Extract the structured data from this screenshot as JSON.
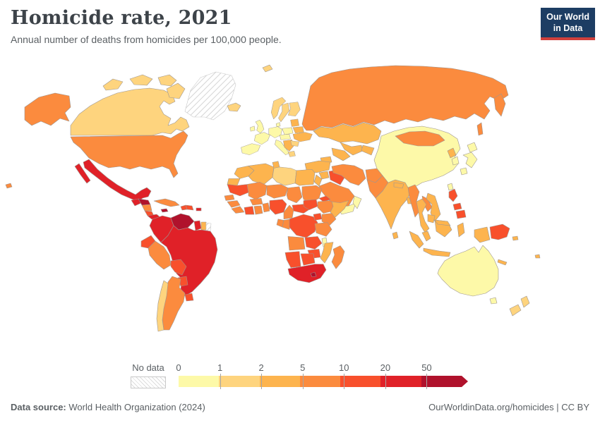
{
  "header": {
    "title": "Homicide rate, 2021",
    "subtitle": "Annual number of deaths from homicides per 100,000 people."
  },
  "logo": {
    "line1": "Our World",
    "line2": "in Data",
    "bg_color": "#1d3d63",
    "accent_color": "#d0403c"
  },
  "legend": {
    "no_data_label": "No data",
    "tick_labels": [
      "0",
      "1",
      "2",
      "5",
      "10",
      "20",
      "50"
    ]
  },
  "footer": {
    "source_label": "Data source:",
    "source_value": "World Health Organization (2024)",
    "credit": "OurWorldinData.org/homicides | CC BY"
  },
  "chart_data": {
    "type": "heatmap",
    "subtype": "choropleth-world-map",
    "title": "Homicide rate, 2021",
    "unit": "annual deaths from homicides per 100,000 people",
    "legend_position": "bottom",
    "no_data": {
      "label": "No data",
      "pattern": "diagonal-hatch"
    },
    "bins": [
      {
        "label": "0-1",
        "min": 0,
        "max": 1,
        "color": "#fdf9a8"
      },
      {
        "label": "1-2",
        "min": 1,
        "max": 2,
        "color": "#fed47e"
      },
      {
        "label": "2-5",
        "min": 2,
        "max": 5,
        "color": "#fdb44e"
      },
      {
        "label": "5-10",
        "min": 5,
        "max": 10,
        "color": "#fb8b3e"
      },
      {
        "label": "10-20",
        "min": 10,
        "max": 20,
        "color": "#f8502c"
      },
      {
        "label": "20-50",
        "min": 20,
        "max": 50,
        "color": "#e02128"
      },
      {
        "label": "50+",
        "min": 50,
        "max": null,
        "color": "#b0122c"
      }
    ],
    "countries": {
      "Greenland": "no-data",
      "Canada": "1-2",
      "United States": "5-10",
      "Mexico": "20-50",
      "Guatemala": "20-50",
      "Honduras": "50+",
      "Nicaragua": "5-10",
      "Costa Rica": "10-20",
      "Panama": "20-50",
      "Cuba": "5-10",
      "Jamaica": "50+",
      "Haiti": "10-20",
      "Dominican Republic": "10-20",
      "Puerto Rico": "20-50",
      "Colombia": "20-50",
      "Venezuela": "50+",
      "Guyana": "20-50",
      "Suriname": "2-5",
      "French Guiana": "no-data",
      "Ecuador": "10-20",
      "Peru": "5-10",
      "Brazil": "20-50",
      "Bolivia": "10-20",
      "Paraguay": "10-20",
      "Uruguay": "10-20",
      "Argentina": "5-10",
      "Chile": "1-2",
      "Iceland": "1-2",
      "United Kingdom": "0-1",
      "Ireland": "0-1",
      "Norway": "1-2",
      "Sweden": "1-2",
      "Finland": "1-2",
      "Denmark": "0-1",
      "Germany": "0-1",
      "Poland": "0-1",
      "France": "0-1",
      "Spain": "0-1",
      "Italy": "0-1",
      "Central Europe": "0-1",
      "Balkans": "2-5",
      "Greece": "1-2",
      "Baltic States": "2-5",
      "Belarus": "2-5",
      "Ukraine": "2-5",
      "Romania": "1-2",
      "Svalbard": "1-2",
      "Russia": "5-10",
      "Kazakhstan": "2-5",
      "Uzbekistan": "2-5",
      "Turkmenistan": "2-5",
      "Kyrgyzstan": "2-5",
      "Caucasus": "2-5",
      "Turkey": "2-5",
      "Syria": "2-5",
      "Jordan": "2-5",
      "Iraq": "10-20",
      "Saudi Arabia": "5-10",
      "Yemen": "0-1",
      "Oman": "0-1",
      "Iran": "5-10",
      "Afghanistan": "5-10",
      "Pakistan": "5-10",
      "India": "2-5",
      "Nepal": "2-5",
      "Bangladesh": "2-5",
      "Sri Lanka": "2-5",
      "Myanmar": "5-10",
      "Thailand": "2-5",
      "Laos": "5-10",
      "Vietnam": "2-5",
      "Cambodia": "2-5",
      "Malaysia": "2-5",
      "Indonesia": "2-5",
      "Philippines": "10-20",
      "China": "0-1",
      "Mongolia": "5-10",
      "North Korea": "2-5",
      "South Korea": "0-1",
      "Japan": "0-1",
      "Taiwan": "0-1",
      "Papua New Guinea": "10-20",
      "Australia": "0-1",
      "New Zealand": "1-2",
      "Solomon Islands": "2-5",
      "Fiji": "2-5",
      "New Caledonia": "2-5",
      "Morocco": "2-5",
      "Western Sahara": "2-5",
      "Algeria": "2-5",
      "Tunisia": "2-5",
      "Libya": "1-2",
      "Egypt": "2-5",
      "Mauritania": "10-20",
      "Mali": "5-10",
      "Niger": "5-10",
      "Chad": "5-10",
      "Sudan": "5-10",
      "Eritrea": "10-20",
      "Ethiopia": "5-10",
      "Somalia": "2-5",
      "Senegal": "5-10",
      "Guinea": "5-10",
      "Sierra Leone": "5-10",
      "Ivory Coast": "10-20",
      "Ghana": "5-10",
      "Burkina Faso": "5-10",
      "Benin": "5-10",
      "Nigeria": "10-20",
      "Cameroon": "5-10",
      "Central African Republic": "10-20",
      "South Sudan": "10-20",
      "Democratic Republic of Congo": "10-20",
      "Congo": "5-10",
      "Gabon": "5-10",
      "Uganda": "10-20",
      "Kenya": "5-10",
      "Tanzania": "5-10",
      "Angola": "5-10",
      "Zambia": "10-20",
      "Malawi": "0-1",
      "Mozambique": "2-5",
      "Zimbabwe": "10-20",
      "Namibia": "10-20",
      "Botswana": "10-20",
      "South Africa": "20-50",
      "Lesotho": "50+",
      "Madagascar": "5-10"
    }
  }
}
